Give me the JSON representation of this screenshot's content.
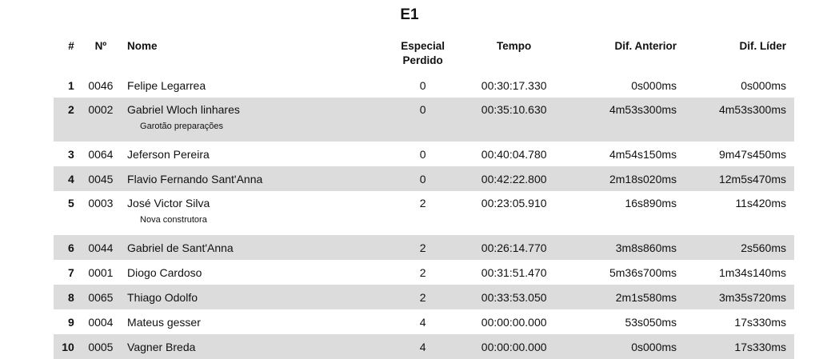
{
  "title": "E1",
  "headers": [
    "#",
    "Nº",
    "Nome",
    "Especial Perdido",
    "Tempo",
    "Dif. Anterior",
    "Dif. Líder"
  ],
  "rows": [
    {
      "pos": "1",
      "num": "0046",
      "name": "Felipe Legarrea",
      "team": "",
      "lost": "0",
      "time": "00:30:17.330",
      "prev": "0s000ms",
      "leader": "0s000ms"
    },
    {
      "pos": "2",
      "num": "0002",
      "name": "Gabriel Wloch linhares",
      "team": "Garotão preparações",
      "lost": "0",
      "time": "00:35:10.630",
      "prev": "4m53s300ms",
      "leader": "4m53s300ms"
    },
    {
      "pos": "3",
      "num": "0064",
      "name": "Jeferson Pereira",
      "team": "",
      "lost": "0",
      "time": "00:40:04.780",
      "prev": "4m54s150ms",
      "leader": "9m47s450ms"
    },
    {
      "pos": "4",
      "num": "0045",
      "name": "Flavio Fernando Sant'Anna",
      "team": "",
      "lost": "0",
      "time": "00:42:22.800",
      "prev": "2m18s020ms",
      "leader": "12m5s470ms"
    },
    {
      "pos": "5",
      "num": "0003",
      "name": "José Victor  Silva",
      "team": "Nova construtora",
      "lost": "2",
      "time": "00:23:05.910",
      "prev": "16s890ms",
      "leader": "11s420ms"
    },
    {
      "pos": "6",
      "num": "0044",
      "name": "Gabriel de Sant'Anna",
      "team": "",
      "lost": "2",
      "time": "00:26:14.770",
      "prev": "3m8s860ms",
      "leader": "2s560ms"
    },
    {
      "pos": "7",
      "num": "0001",
      "name": "Diogo Cardoso",
      "team": "",
      "lost": "2",
      "time": "00:31:51.470",
      "prev": "5m36s700ms",
      "leader": "1m34s140ms"
    },
    {
      "pos": "8",
      "num": "0065",
      "name": "Thiago Odolfo",
      "team": "",
      "lost": "2",
      "time": "00:33:53.050",
      "prev": "2m1s580ms",
      "leader": "3m35s720ms"
    },
    {
      "pos": "9",
      "num": "0004",
      "name": "Mateus gesser",
      "team": "",
      "lost": "4",
      "time": "00:00:00.000",
      "prev": "53s050ms",
      "leader": "17s330ms"
    },
    {
      "pos": "10",
      "num": "0005",
      "name": "Vagner  Breda",
      "team": "",
      "lost": "4",
      "time": "00:00:00.000",
      "prev": "0s000ms",
      "leader": "17s330ms"
    }
  ]
}
